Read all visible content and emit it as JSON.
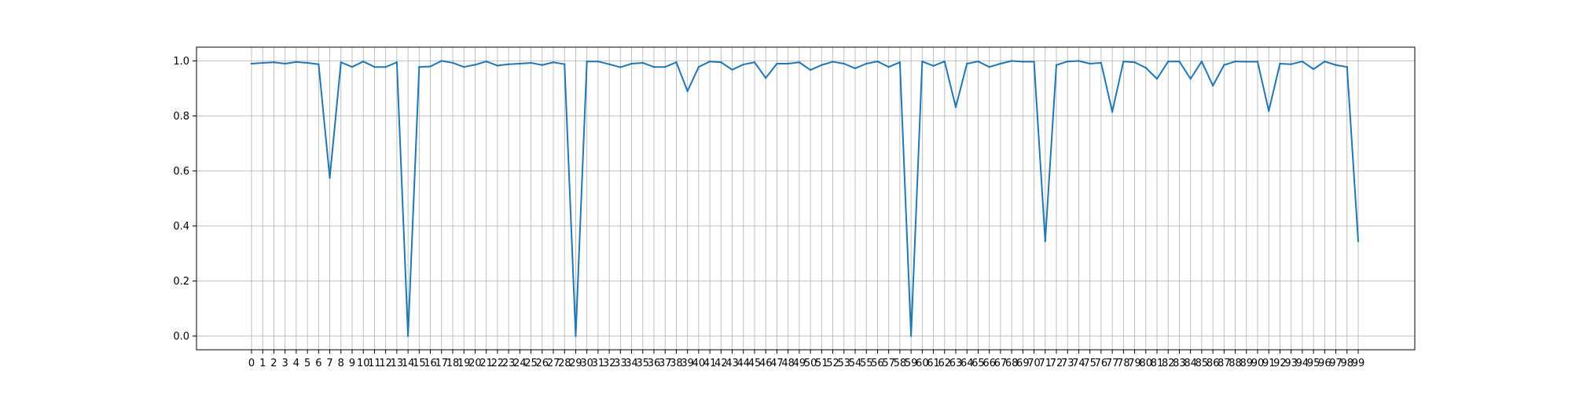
{
  "chart_data": {
    "type": "line",
    "x": [
      "0",
      "1",
      "2",
      "3",
      "4",
      "5",
      "6",
      "7",
      "8",
      "9",
      "10",
      "11",
      "12",
      "13",
      "14",
      "15",
      "16",
      "17",
      "18",
      "19",
      "20",
      "21",
      "22",
      "23",
      "24",
      "25",
      "26",
      "27",
      "28",
      "29",
      "30",
      "31",
      "32",
      "33",
      "34",
      "35",
      "36",
      "37",
      "38",
      "39",
      "40",
      "41",
      "42",
      "43",
      "44",
      "45",
      "46",
      "47",
      "48",
      "49",
      "50",
      "51",
      "52",
      "53",
      "54",
      "55",
      "56",
      "57",
      "58",
      "59",
      "60",
      "61",
      "62",
      "63",
      "64",
      "65",
      "66",
      "67",
      "68",
      "69",
      "70",
      "71",
      "72",
      "73",
      "74",
      "75",
      "76",
      "77",
      "78",
      "79",
      "80",
      "81",
      "82",
      "83",
      "84",
      "85",
      "86",
      "87",
      "88",
      "89",
      "90",
      "91",
      "92",
      "93",
      "94",
      "95",
      "96",
      "97",
      "98",
      "99"
    ],
    "series": [
      {
        "values": [
          0.99,
          0.993,
          0.995,
          0.99,
          0.996,
          0.993,
          0.988,
          0.575,
          0.995,
          0.978,
          0.998,
          0.978,
          0.978,
          0.995,
          0.0,
          0.978,
          0.98,
          1.0,
          0.993,
          0.978,
          0.986,
          0.998,
          0.983,
          0.988,
          0.99,
          0.993,
          0.985,
          0.995,
          0.988,
          0.0,
          0.998,
          0.998,
          0.988,
          0.977,
          0.99,
          0.993,
          0.978,
          0.978,
          0.995,
          0.89,
          0.978,
          0.998,
          0.995,
          0.968,
          0.987,
          0.995,
          0.938,
          0.99,
          0.99,
          0.995,
          0.967,
          0.985,
          0.997,
          0.99,
          0.973,
          0.99,
          0.998,
          0.978,
          0.995,
          0.0,
          0.998,
          0.982,
          0.998,
          0.832,
          0.99,
          0.998,
          0.978,
          0.99,
          1.0,
          0.997,
          0.997,
          0.345,
          0.985,
          0.998,
          1.0,
          0.99,
          0.993,
          0.815,
          0.998,
          0.995,
          0.975,
          0.935,
          0.998,
          0.998,
          0.935,
          0.998,
          0.91,
          0.985,
          0.998,
          0.997,
          0.997,
          0.818,
          0.99,
          0.988,
          0.998,
          0.97,
          0.998,
          0.985,
          0.978,
          0.345
        ],
        "color": "#1f77b4"
      }
    ],
    "yticks": [
      "0.0",
      "0.2",
      "0.4",
      "0.6",
      "0.8",
      "1.0"
    ],
    "ylim": [
      -0.05,
      1.05
    ],
    "grid": true,
    "title": "",
    "xlabel": "",
    "ylabel": ""
  }
}
